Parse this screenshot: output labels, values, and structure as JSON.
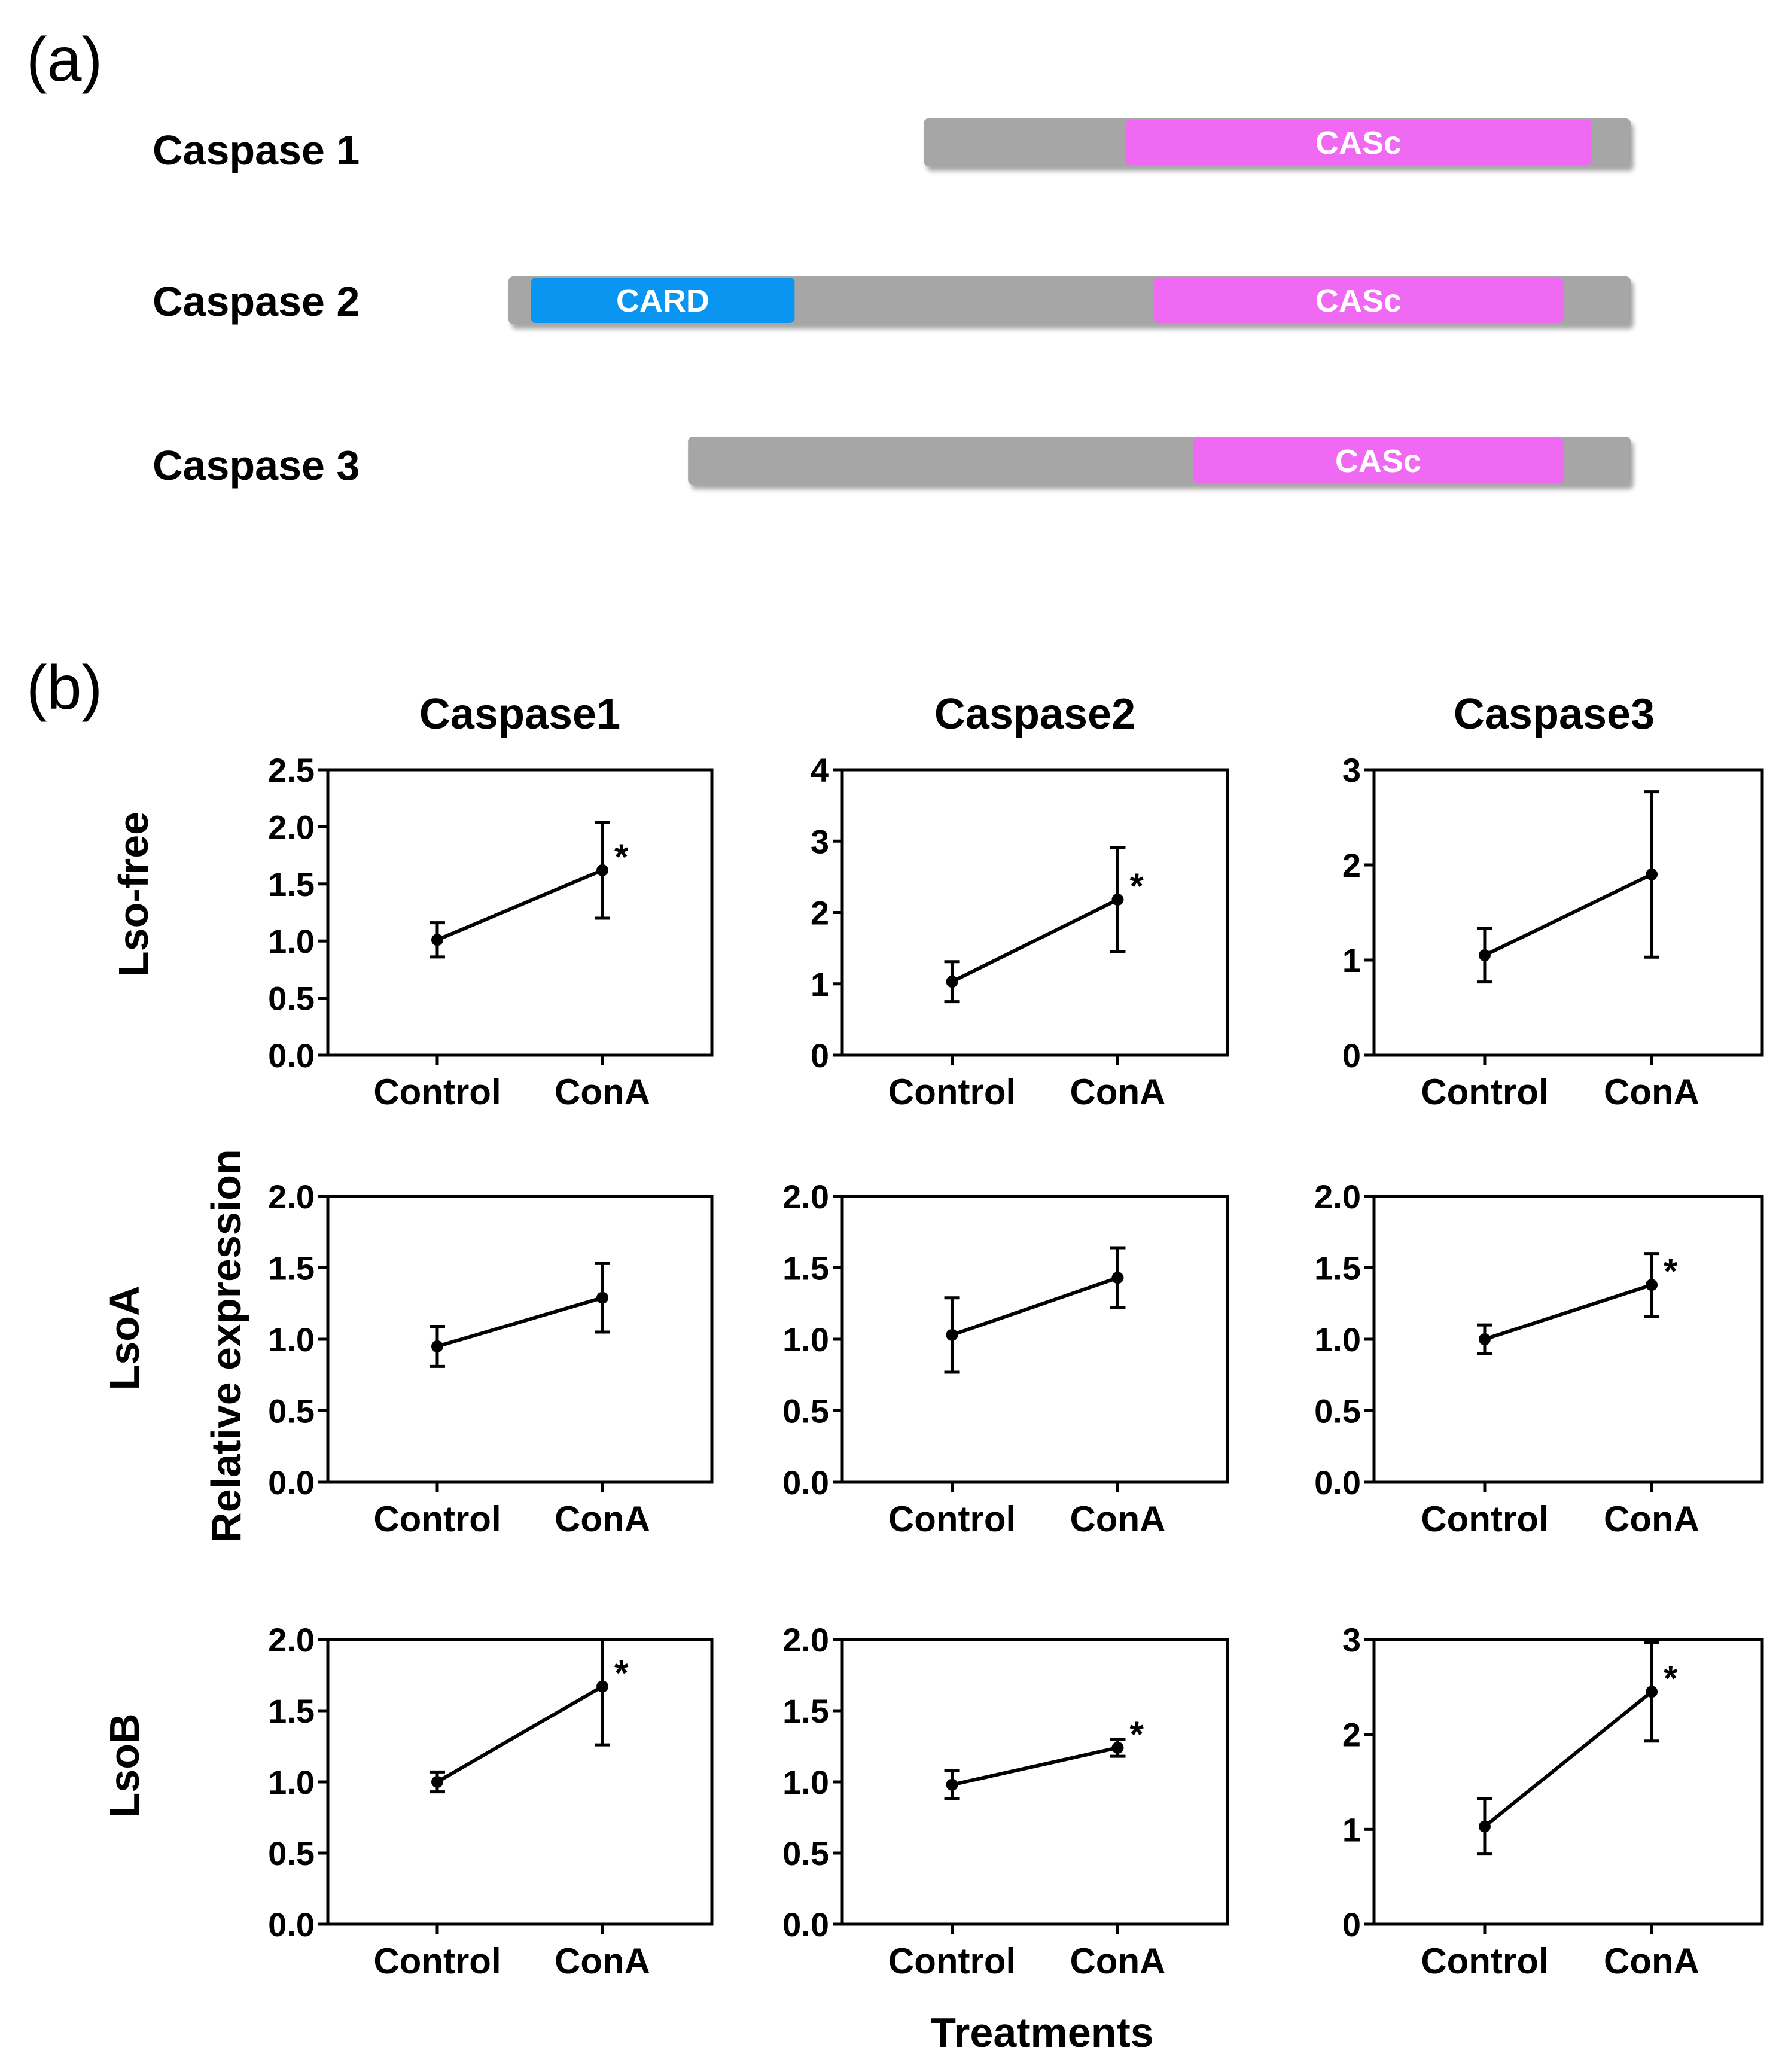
{
  "figure": {
    "panel_a_label": "(a)",
    "panel_b_label": "(b)",
    "y_axis_title": "Relative expression",
    "x_axis_title": "Treatments",
    "column_titles": [
      "Caspase1",
      "Caspase2",
      "Caspase3"
    ],
    "row_titles": [
      "Lso-free",
      "LsoA",
      "LsoB"
    ]
  },
  "colors": {
    "backbone": "#a6a6a6",
    "card": "#0a96f0",
    "casc": "#f069f2",
    "line": "#000000"
  },
  "domains": [
    {
      "label": "Caspase 1",
      "span_aa": [
        0.37,
        1.0
      ],
      "domains": [
        {
          "name": "CASc",
          "span": [
            0.55,
            0.965
          ],
          "color": "casc"
        }
      ]
    },
    {
      "label": "Caspase 2",
      "span_aa": [
        0.0,
        1.0
      ],
      "domains": [
        {
          "name": "CARD",
          "span": [
            0.02,
            0.255
          ],
          "color": "card"
        },
        {
          "name": "CASc",
          "span": [
            0.575,
            0.94
          ],
          "color": "casc"
        }
      ]
    },
    {
      "label": "Caspase 3",
      "span_aa": [
        0.16,
        1.0
      ],
      "domains": [
        {
          "name": "CASc",
          "span": [
            0.61,
            0.94
          ],
          "color": "casc"
        }
      ]
    }
  ],
  "chart_data": [
    {
      "type": "line",
      "row": "Lso-free",
      "column": "Caspase1",
      "categories": [
        "Control",
        "ConA"
      ],
      "values": [
        1.01,
        1.62
      ],
      "errors": [
        0.15,
        0.42
      ],
      "significant": [
        false,
        true
      ],
      "ylim": [
        0,
        2.5
      ],
      "yticks": [
        "0.0",
        "0.5",
        "1.0",
        "1.5",
        "2.0",
        "2.5"
      ]
    },
    {
      "type": "line",
      "row": "Lso-free",
      "column": "Caspase2",
      "categories": [
        "Control",
        "ConA"
      ],
      "values": [
        1.03,
        2.18
      ],
      "errors": [
        0.28,
        0.73
      ],
      "significant": [
        false,
        true
      ],
      "ylim": [
        0,
        4
      ],
      "yticks": [
        "0",
        "1",
        "2",
        "3",
        "4"
      ]
    },
    {
      "type": "line",
      "row": "Lso-free",
      "column": "Caspase3",
      "categories": [
        "Control",
        "ConA"
      ],
      "values": [
        1.05,
        1.9
      ],
      "errors": [
        0.28,
        0.87
      ],
      "significant": [
        false,
        false
      ],
      "ylim": [
        0,
        3
      ],
      "yticks": [
        "0",
        "1",
        "2",
        "3"
      ]
    },
    {
      "type": "line",
      "row": "LsoA",
      "column": "Caspase1",
      "categories": [
        "Control",
        "ConA"
      ],
      "values": [
        0.95,
        1.29
      ],
      "errors": [
        0.14,
        0.24
      ],
      "significant": [
        false,
        false
      ],
      "ylim": [
        0,
        2.0
      ],
      "yticks": [
        "0.0",
        "0.5",
        "1.0",
        "1.5",
        "2.0"
      ]
    },
    {
      "type": "line",
      "row": "LsoA",
      "column": "Caspase2",
      "categories": [
        "Control",
        "ConA"
      ],
      "values": [
        1.03,
        1.43
      ],
      "errors": [
        0.26,
        0.21
      ],
      "significant": [
        false,
        false
      ],
      "ylim": [
        0,
        2.0
      ],
      "yticks": [
        "0.0",
        "0.5",
        "1.0",
        "1.5",
        "2.0"
      ]
    },
    {
      "type": "line",
      "row": "LsoA",
      "column": "Caspase3",
      "categories": [
        "Control",
        "ConA"
      ],
      "values": [
        1.0,
        1.38
      ],
      "errors": [
        0.1,
        0.22
      ],
      "significant": [
        false,
        true
      ],
      "ylim": [
        0,
        2.0
      ],
      "yticks": [
        "0.0",
        "0.5",
        "1.0",
        "1.5",
        "2.0"
      ]
    },
    {
      "type": "line",
      "row": "LsoB",
      "column": "Caspase1",
      "categories": [
        "Control",
        "ConA"
      ],
      "values": [
        1.0,
        1.67
      ],
      "errors": [
        0.07,
        0.41
      ],
      "significant": [
        false,
        true
      ],
      "ylim": [
        0,
        2.0
      ],
      "yticks": [
        "0.0",
        "0.5",
        "1.0",
        "1.5",
        "2.0"
      ]
    },
    {
      "type": "line",
      "row": "LsoB",
      "column": "Caspase2",
      "categories": [
        "Control",
        "ConA"
      ],
      "values": [
        0.98,
        1.24
      ],
      "errors": [
        0.1,
        0.06
      ],
      "significant": [
        false,
        true
      ],
      "ylim": [
        0,
        2.0
      ],
      "yticks": [
        "0.0",
        "0.5",
        "1.0",
        "1.5",
        "2.0"
      ]
    },
    {
      "type": "line",
      "row": "LsoB",
      "column": "Caspase3",
      "categories": [
        "Control",
        "ConA"
      ],
      "values": [
        1.03,
        2.45
      ],
      "errors": [
        0.29,
        0.52
      ],
      "significant": [
        false,
        true
      ],
      "ylim": [
        0,
        3
      ],
      "yticks": [
        "0",
        "1",
        "2",
        "3"
      ]
    }
  ]
}
